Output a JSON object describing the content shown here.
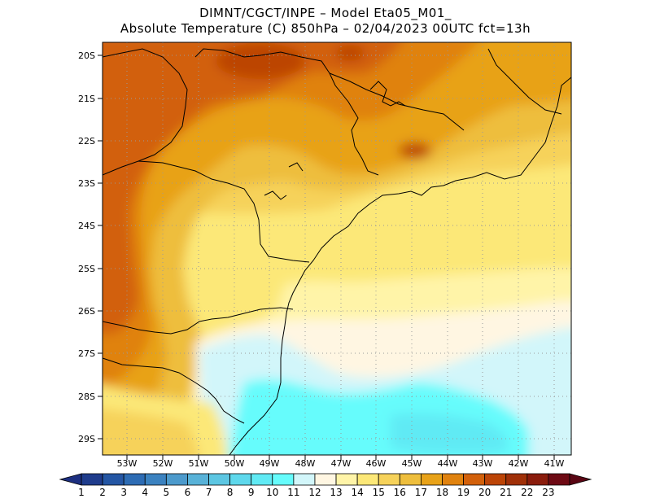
{
  "title": {
    "line1": "DIMNT/CGCT/INPE –  Model Eta05_M01_",
    "line2": "Absolute Temperature (C) 850hPa –  02/04/2023 00UTC fct=13h"
  },
  "map": {
    "lat_labels": [
      "20S",
      "21S",
      "22S",
      "23S",
      "24S",
      "25S",
      "26S",
      "27S",
      "28S",
      "29S"
    ],
    "lon_labels": [
      "53W",
      "52W",
      "51W",
      "50W",
      "49W",
      "48W",
      "47W",
      "46W",
      "45W",
      "44W",
      "43W",
      "42W",
      "41W"
    ],
    "region": {
      "lon_min": -53.8,
      "lon_max": -40.6,
      "lat_min": -29.4,
      "lat_max": -19.6
    }
  },
  "colorbar": {
    "labels": [
      "1",
      "2",
      "3",
      "4",
      "5",
      "6",
      "7",
      "8",
      "9",
      "10",
      "11",
      "12",
      "13",
      "14",
      "15",
      "16",
      "17",
      "18",
      "19",
      "20",
      "21",
      "22",
      "23"
    ],
    "colors": [
      "#1f3c8c",
      "#2456a4",
      "#2d6cb4",
      "#3b82c0",
      "#4c9acc",
      "#58b2d8",
      "#5cc6e2",
      "#5ed8ec",
      "#60eaf4",
      "#66fcfc",
      "#d2f6fa",
      "#fff6e2",
      "#fff4a8",
      "#fce878",
      "#f6d25a",
      "#eebe3c",
      "#e8a218",
      "#e0820e",
      "#d2600a",
      "#bc4406",
      "#a03008",
      "#8a1c0c",
      "#6e0a14"
    ]
  }
}
